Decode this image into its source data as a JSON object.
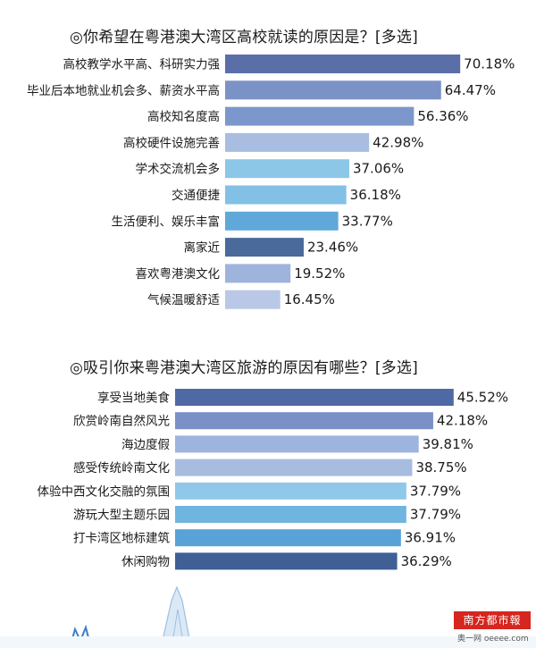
{
  "logo": {
    "text": "南方都市報",
    "sub": "奥一网 oeeee.com"
  },
  "chart_data": [
    {
      "type": "bar",
      "title": "◎你希望在粤港澳大湾区高校就读的原因是？[多选]",
      "categories": [
        "高校教学水平高、科研实力强",
        "毕业后本地就业机会多、薪资水平高",
        "高校知名度高",
        "高校硬件设施完善",
        "学术交流机会多",
        "交通便捷",
        "生活便利、娱乐丰富",
        "离家近",
        "喜欢粤港澳文化",
        "气候温暖舒适"
      ],
      "values": [
        70.18,
        64.47,
        56.36,
        42.98,
        37.06,
        36.18,
        33.77,
        23.46,
        19.52,
        16.45
      ],
      "value_labels": [
        "70.18%",
        "64.47%",
        "56.36%",
        "42.98%",
        "37.06%",
        "36.18%",
        "33.77%",
        "23.46%",
        "19.52%",
        "16.45%"
      ],
      "colors": [
        "#5a6fa8",
        "#7b92c6",
        "#7c97cc",
        "#a9bde0",
        "#8dc7e7",
        "#82c1e5",
        "#5fa8d9",
        "#4a6a9c",
        "#9eb4dd",
        "#b8c8e6"
      ],
      "orientation": "horizontal"
    },
    {
      "type": "bar",
      "title": "◎吸引你来粤港澳大湾区旅游的原因有哪些？[多选]",
      "categories": [
        "享受当地美食",
        "欣赏岭南自然风光",
        "海边度假",
        "感受传统岭南文化",
        "体验中西文化交融的氛围",
        "游玩大型主题乐园",
        "打卡湾区地标建筑",
        "休闲购物"
      ],
      "values": [
        45.52,
        42.18,
        39.81,
        38.75,
        37.79,
        37.79,
        36.91,
        36.29
      ],
      "value_labels": [
        "45.52%",
        "42.18%",
        "39.81%",
        "38.75%",
        "37.79%",
        "37.79%",
        "36.91%",
        "36.29%"
      ],
      "colors": [
        "#4f69a4",
        "#7a90c6",
        "#9db4de",
        "#a8bce0",
        "#8fc8e8",
        "#6fb5e0",
        "#58a2d8",
        "#3f5f95"
      ],
      "orientation": "horizontal"
    }
  ]
}
